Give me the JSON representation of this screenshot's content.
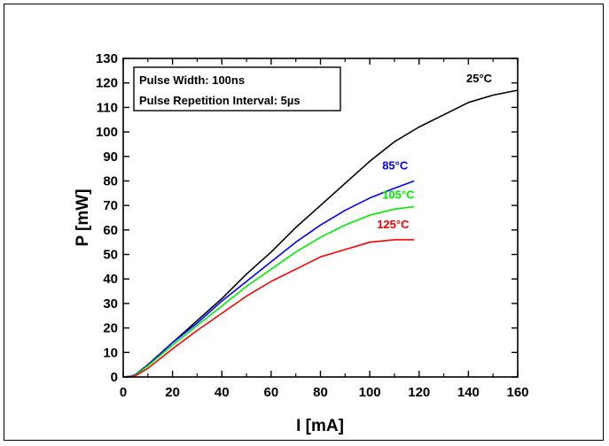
{
  "chart_data": {
    "type": "line",
    "title": "",
    "xlabel": "I [mA]",
    "ylabel": "P [mW]",
    "xlim": [
      0,
      160
    ],
    "ylim": [
      0,
      130
    ],
    "xticks": [
      0,
      20,
      40,
      60,
      80,
      100,
      120,
      140,
      160
    ],
    "yticks": [
      0,
      10,
      20,
      30,
      40,
      50,
      60,
      70,
      80,
      90,
      100,
      110,
      120,
      130
    ],
    "grid": false,
    "annotation_lines": [
      "Pulse Width: 100ns",
      "Pulse Repetition Interval: 5µs"
    ],
    "series": [
      {
        "name": "25°C",
        "color": "#000000",
        "x": [
          0,
          3,
          5,
          10,
          20,
          30,
          40,
          50,
          60,
          70,
          80,
          90,
          100,
          110,
          120,
          130,
          140,
          150,
          160
        ],
        "y": [
          0,
          0.3,
          1,
          5,
          14,
          23,
          32,
          42,
          51,
          61,
          70,
          79,
          88,
          96,
          102,
          107,
          112,
          115,
          117
        ]
      },
      {
        "name": "85°C",
        "color": "#0000ff",
        "x": [
          0,
          3,
          5,
          10,
          20,
          30,
          40,
          50,
          60,
          70,
          80,
          90,
          100,
          110,
          118
        ],
        "y": [
          0,
          0.3,
          1,
          5,
          14,
          22,
          31,
          39,
          47,
          55,
          62,
          68,
          73,
          77,
          80
        ]
      },
      {
        "name": "105°C",
        "color": "#00ee00",
        "x": [
          0,
          3,
          5,
          10,
          20,
          30,
          40,
          50,
          60,
          70,
          80,
          90,
          100,
          110,
          118
        ],
        "y": [
          0,
          0.2,
          0.8,
          4.5,
          13,
          21,
          29,
          37,
          44,
          51,
          57,
          62,
          66,
          68.5,
          69.5
        ]
      },
      {
        "name": "125°C",
        "color": "#ff0000",
        "x": [
          0,
          3,
          5,
          10,
          20,
          30,
          40,
          50,
          60,
          70,
          80,
          90,
          100,
          105,
          110,
          118
        ],
        "y": [
          0,
          0.1,
          0.5,
          3.5,
          11.5,
          19,
          26,
          33,
          39,
          44,
          49,
          52,
          55,
          55.5,
          56,
          56
        ]
      }
    ]
  }
}
